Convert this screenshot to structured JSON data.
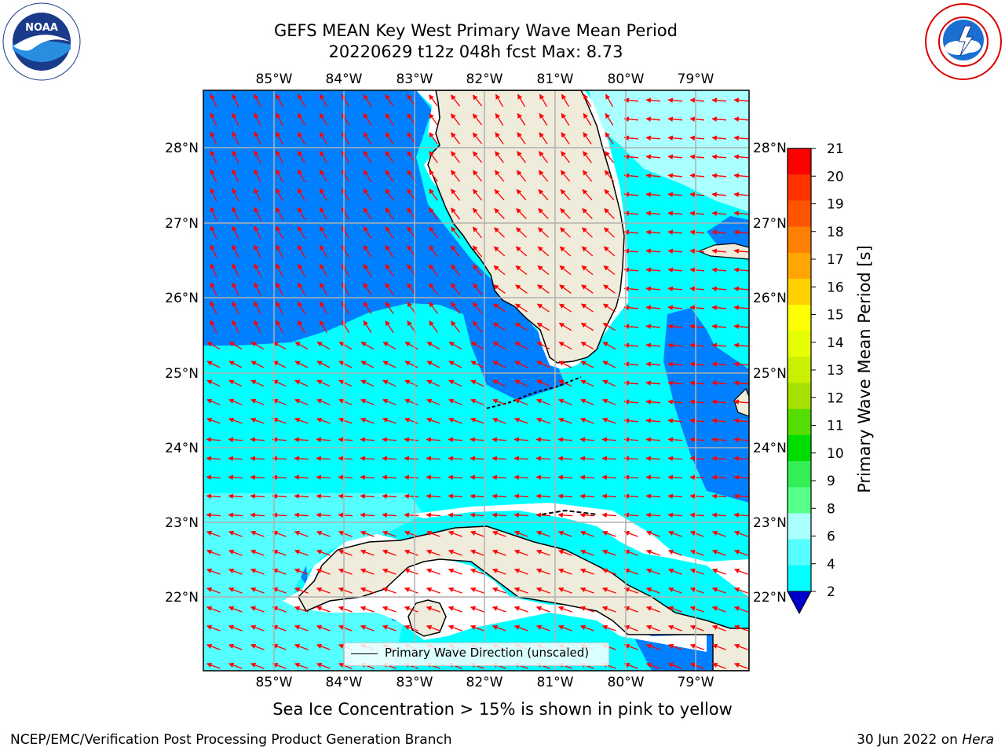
{
  "title": {
    "line1": "GEFS MEAN Key West Primary Wave Mean Period",
    "line2": "20220629 t12z 048h fcst    Max: 8.73"
  },
  "logos": {
    "left": {
      "icon": "noaa-logo",
      "text": "NOAA"
    },
    "right": {
      "icon": "nws-logo"
    }
  },
  "map": {
    "lon_ticks": [
      "85°W",
      "84°W",
      "83°W",
      "82°W",
      "81°W",
      "80°W",
      "79°W"
    ],
    "lat_ticks": [
      "28°N",
      "27°N",
      "26°N",
      "25°N",
      "24°N",
      "23°N",
      "22°N"
    ],
    "lon_range": [
      -86,
      -78.3
    ],
    "lat_range": [
      21,
      28.8
    ],
    "legend": "Primary Wave Direction (unscaled)"
  },
  "colorbar": {
    "label": "Primary Wave Mean Period [s]",
    "ticks": [
      "21",
      "20",
      "19",
      "18",
      "17",
      "16",
      "15",
      "14",
      "13",
      "12",
      "11",
      "10",
      "9",
      "8",
      "6",
      "4",
      "2"
    ],
    "colors": [
      "#ff0000",
      "#ff3300",
      "#ff5500",
      "#ff7f00",
      "#ffa500",
      "#ffd000",
      "#ffff00",
      "#e6ff00",
      "#c8f000",
      "#a6e000",
      "#55dd00",
      "#00dd00",
      "#33ee55",
      "#55ff88",
      "#aaffff",
      "#55ffff",
      "#00ffff",
      "#0080ff"
    ],
    "under_color": "#0000cc"
  },
  "chart_data": {
    "type": "heatmap",
    "title": "GEFS MEAN Key West Primary Wave Mean Period",
    "subtitle": "20220629 t12z 048h fcst    Max: 8.73",
    "variable": "Primary Wave Mean Period [s]",
    "max": 8.73,
    "levels": [
      2,
      4,
      6,
      8,
      9,
      10,
      11,
      12,
      13,
      14,
      15,
      16,
      17,
      18,
      19,
      20,
      21
    ],
    "xlabel": "",
    "ylabel": "",
    "xlim": [
      -86,
      -78.3
    ],
    "ylim": [
      21,
      28.8
    ]
  },
  "ice_note": "Sea Ice Concentration > 15% is shown in pink to yellow",
  "footer": {
    "left": "NCEP/EMC/Verification Post Processing Product Generation Branch",
    "right_prefix": "30 Jun 2022 on ",
    "right_italic": "Hera"
  }
}
